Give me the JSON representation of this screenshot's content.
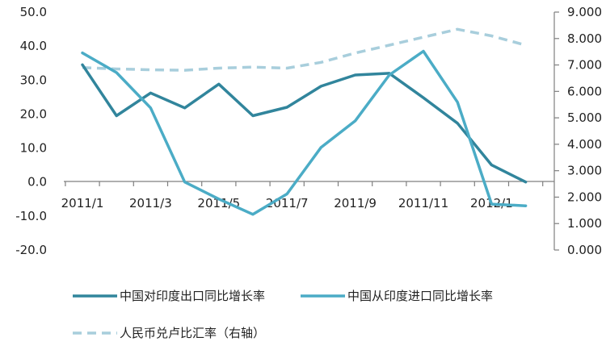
{
  "chart_data": {
    "type": "line",
    "title": "",
    "categories": [
      "2011/1",
      "2011/2",
      "2011/3",
      "2011/4",
      "2011/5",
      "2011/6",
      "2011/7",
      "2011/8",
      "2011/9",
      "2011/10",
      "2011/11",
      "2011/12",
      "2012/1",
      "2012/2"
    ],
    "x_tick_labels": [
      "2011/1",
      "2011/3",
      "2011/5",
      "2011/7",
      "2011/9",
      "2011/11",
      "2012/1"
    ],
    "y_left": {
      "min": -20,
      "max": 50,
      "step": 10,
      "tick_labels": [
        "50.0",
        "40.0",
        "30.0",
        "20.0",
        "10.0",
        "0.0",
        "-10.0",
        "-20.0"
      ]
    },
    "y_right": {
      "min": 0,
      "max": 9,
      "step": 1,
      "tick_labels": [
        "9.000",
        "8.000",
        "7.000",
        "6.000",
        "5.000",
        "4.000",
        "3.000",
        "2.000",
        "1.000",
        "0.000"
      ]
    },
    "series": [
      {
        "name": "中国对印度出口同比增长率",
        "axis": "left",
        "style": "solid",
        "color": "#31859c",
        "values": [
          34.5,
          19.5,
          26.2,
          21.8,
          28.8,
          19.5,
          22.0,
          28.2,
          31.5,
          32.0,
          24.8,
          17.3,
          5.0,
          0.0
        ]
      },
      {
        "name": "中国从印度进口同比增长率",
        "axis": "left",
        "style": "solid",
        "color": "#4bacc6",
        "values": [
          38.0,
          32.2,
          21.8,
          0.0,
          -5.0,
          -9.5,
          -3.5,
          10.2,
          18.0,
          31.5,
          38.5,
          23.5,
          -6.5,
          -7.0
        ]
      },
      {
        "name": "人民币兑卢比汇率（右轴）",
        "axis": "right",
        "style": "dashed",
        "color": "#a8cedc",
        "values": [
          6.9,
          6.85,
          6.82,
          6.8,
          6.88,
          6.92,
          6.88,
          7.1,
          7.45,
          7.75,
          8.05,
          8.35,
          8.1,
          7.75
        ]
      }
    ]
  }
}
